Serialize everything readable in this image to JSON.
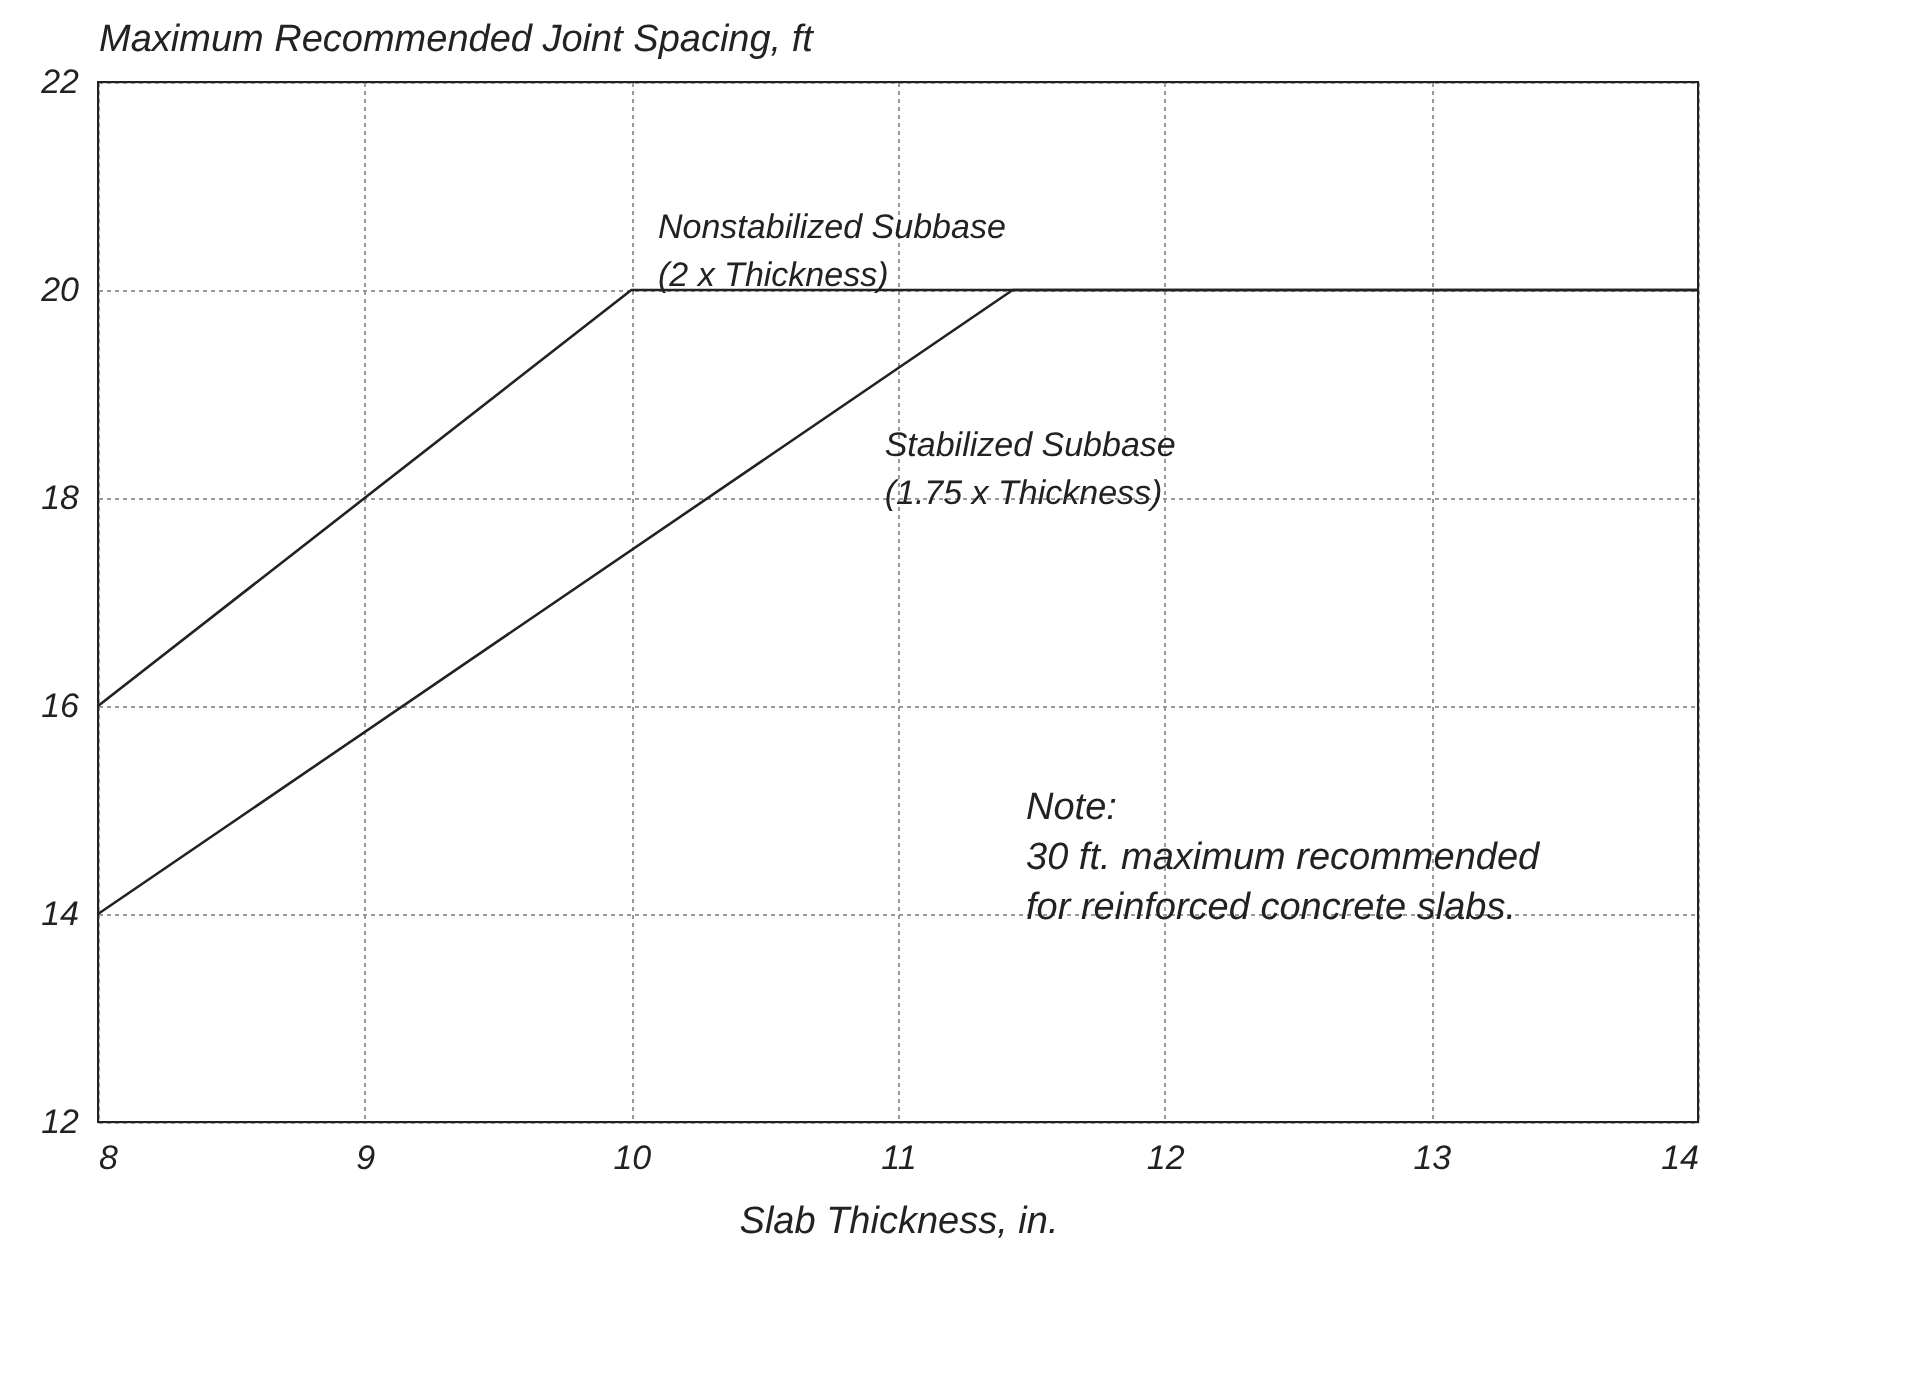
{
  "chart_data": {
    "type": "line",
    "ylabel": "Maximum Recommended Joint Spacing, ft",
    "xlabel": "Slab Thickness, in.",
    "series": [
      {
        "name": "Nonstabilized Subbase\n(2 x Thickness)",
        "color": "#222222",
        "x": [
          8,
          10,
          14
        ],
        "values": [
          16,
          20,
          20
        ]
      },
      {
        "name": "Stabilized Subbase\n(1.75 x Thickness)",
        "color": "#222222",
        "x": [
          8,
          11.43,
          14
        ],
        "values": [
          14,
          20,
          20
        ]
      }
    ],
    "xlim": [
      8,
      14
    ],
    "xticks": [
      8,
      9,
      10,
      11,
      12,
      13,
      14
    ],
    "ylim": [
      12,
      22
    ],
    "yticks": [
      12,
      14,
      16,
      18,
      20,
      22
    ],
    "grid": true,
    "legend": false,
    "marker": "none",
    "line_style": "solid",
    "annotations": [
      "Note:\n30 ft. maximum recommended\nfor reinforced concrete slabs."
    ]
  }
}
